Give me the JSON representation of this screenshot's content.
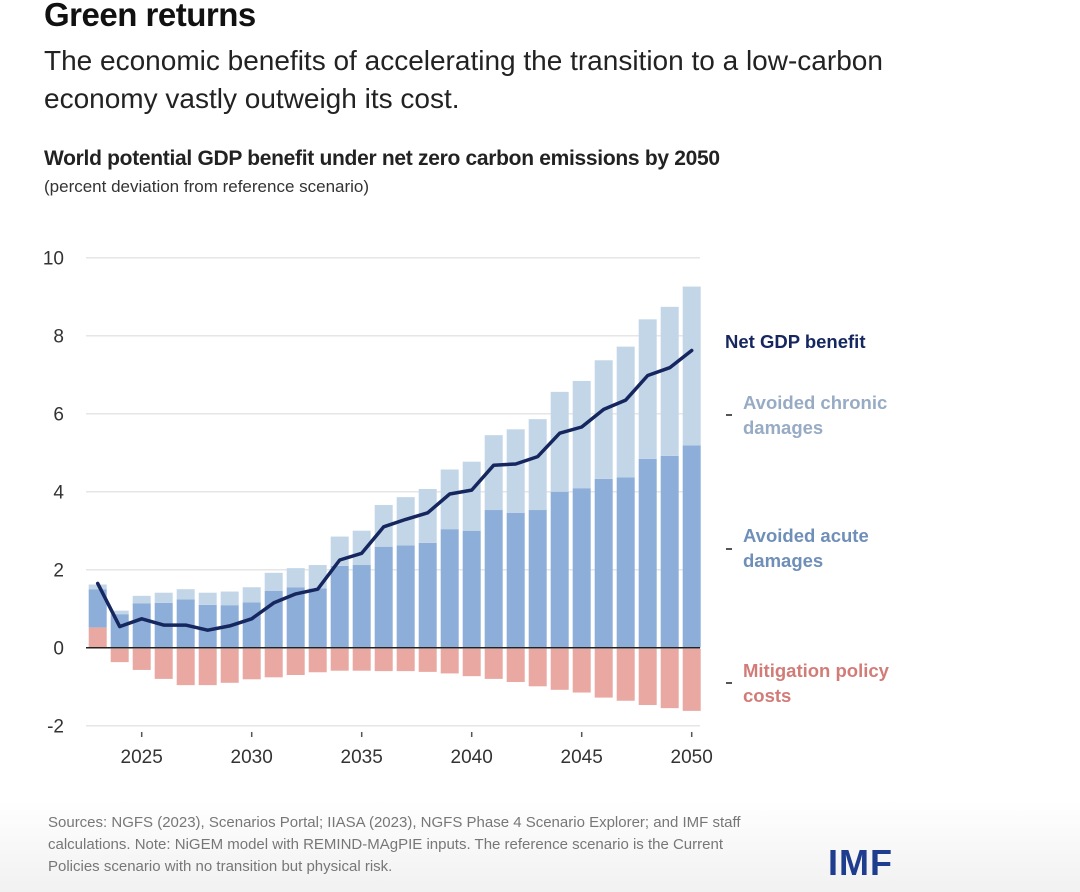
{
  "header": {
    "title": "Green returns",
    "subtitle": "The economic benefits of accelerating the transition to a low-carbon economy vastly outweigh its cost."
  },
  "footer": {
    "sources": "Sources: NGFS (2023), Scenarios Portal; IIASA (2023), NGFS Phase 4 Scenario Explorer; and IMF staff calculations. Note: NiGEM model with REMIND-MAgPIE inputs. The reference scenario is the Current Policies scenario with no transition but physical risk.",
    "logo": "IMF"
  },
  "colors": {
    "chronic": "#c3d6e8",
    "acute": "#8daed8",
    "mitigation": "#e9a9a2",
    "net_line": "#15275e",
    "chronic_label": "#97abc4",
    "acute_label": "#6f8fb9",
    "mitigation_label": "#d27c78",
    "net_label": "#15275e",
    "logo": "#1f3d8f"
  },
  "chart_data": {
    "type": "bar",
    "stacked": true,
    "title": "World potential GDP benefit under net zero carbon emissions by 2050",
    "subtitle": "(percent deviation from reference scenario)",
    "xlabel": "",
    "ylabel": "",
    "ylim": [
      -2,
      10
    ],
    "yticks": [
      -2,
      0,
      2,
      4,
      6,
      8,
      10
    ],
    "ytick_labels": [
      "-2",
      "0",
      "2",
      "4",
      "6",
      "8",
      "10"
    ],
    "xticks": [
      2025,
      2030,
      2035,
      2040,
      2045,
      2050
    ],
    "xtick_labels": [
      "2025",
      "2030",
      "2035",
      "2040",
      "2045",
      "2050"
    ],
    "grid": true,
    "legend": "right",
    "categories": [
      2023,
      2024,
      2025,
      2026,
      2027,
      2028,
      2029,
      2030,
      2031,
      2032,
      2033,
      2034,
      2035,
      2036,
      2037,
      2038,
      2039,
      2040,
      2041,
      2042,
      2043,
      2044,
      2045,
      2046,
      2047,
      2048,
      2049,
      2050
    ],
    "series": [
      {
        "name": "Mitigation policy costs",
        "key": "mitigation",
        "type": "bar",
        "values": [
          0.52,
          -0.37,
          -0.57,
          -0.8,
          -0.96,
          -0.96,
          -0.9,
          -0.81,
          -0.76,
          -0.7,
          -0.63,
          -0.59,
          -0.59,
          -0.6,
          -0.6,
          -0.62,
          -0.66,
          -0.73,
          -0.8,
          -0.88,
          -0.99,
          -1.08,
          -1.15,
          -1.28,
          -1.36,
          -1.47,
          -1.55,
          -1.62
        ]
      },
      {
        "name": "Avoided acute damages",
        "key": "acute",
        "type": "bar",
        "values": [
          0.98,
          0.86,
          1.14,
          1.15,
          1.24,
          1.1,
          1.09,
          1.16,
          1.46,
          1.55,
          1.52,
          2.1,
          2.12,
          2.59,
          2.62,
          2.69,
          3.04,
          3.0,
          3.53,
          3.46,
          3.53,
          4.0,
          4.09,
          4.33,
          4.37,
          4.84,
          4.92,
          5.19
        ]
      },
      {
        "name": "Avoided chronic damages",
        "key": "chronic",
        "type": "bar",
        "values": [
          0.12,
          0.09,
          0.19,
          0.26,
          0.26,
          0.31,
          0.35,
          0.39,
          0.46,
          0.49,
          0.6,
          0.75,
          0.88,
          1.07,
          1.24,
          1.38,
          1.53,
          1.77,
          1.92,
          2.14,
          2.33,
          2.56,
          2.75,
          3.04,
          3.35,
          3.58,
          3.82,
          4.07
        ]
      },
      {
        "name": "Net GDP benefit",
        "key": "net",
        "type": "line",
        "values": [
          1.65,
          0.54,
          0.74,
          0.58,
          0.58,
          0.45,
          0.56,
          0.74,
          1.15,
          1.38,
          1.5,
          2.25,
          2.42,
          3.1,
          3.29,
          3.46,
          3.94,
          4.04,
          4.68,
          4.71,
          4.9,
          5.5,
          5.66,
          6.11,
          6.35,
          6.98,
          7.18,
          7.62
        ]
      }
    ],
    "legend_labels": {
      "net": "Net GDP benefit",
      "chronic": "Avoided chronic damages",
      "acute": "Avoided acute damages",
      "mitigation": "Mitigation policy costs"
    }
  }
}
